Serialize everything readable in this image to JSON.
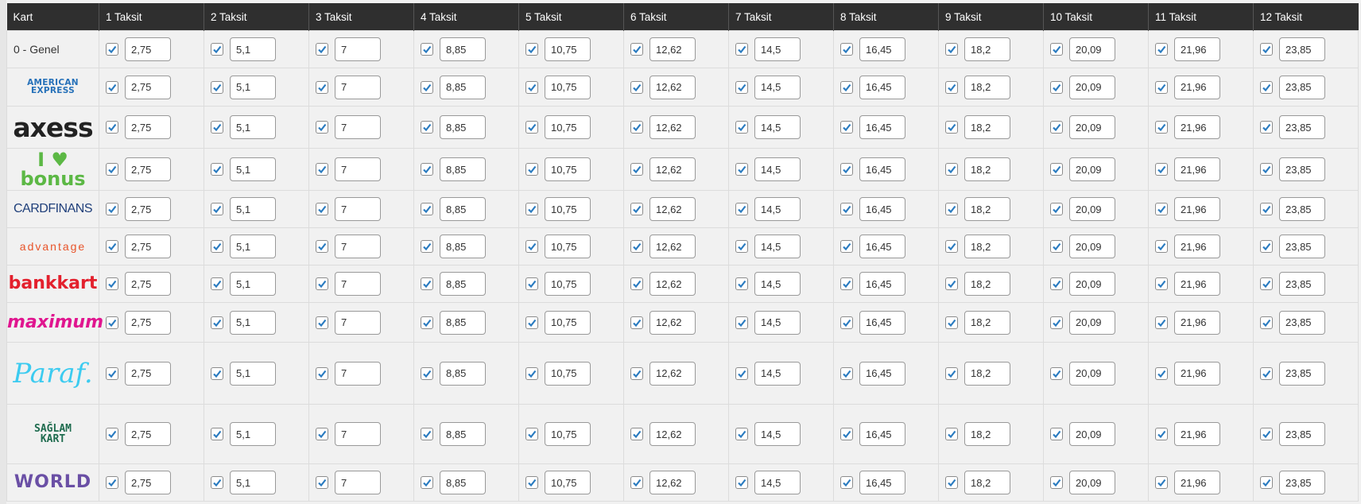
{
  "header": {
    "kart": "Kart",
    "columns": [
      "1 Taksit",
      "2 Taksit",
      "3 Taksit",
      "4 Taksit",
      "5 Taksit",
      "6 Taksit",
      "7 Taksit",
      "8 Taksit",
      "9 Taksit",
      "10 Taksit",
      "11 Taksit",
      "12 Taksit"
    ]
  },
  "values": [
    "2,75",
    "5,1",
    "7",
    "8,85",
    "10,75",
    "12,62",
    "14,5",
    "16,45",
    "18,2",
    "20,09",
    "21,96",
    "23,85"
  ],
  "rows": [
    {
      "kart": "0 - Genel",
      "type": "text",
      "checked": [
        true,
        true,
        true,
        true,
        true,
        true,
        true,
        true,
        true,
        true,
        true,
        true
      ]
    },
    {
      "kart": "AMERICAN EXPRESS",
      "type": "logo",
      "logo": "amex",
      "color": "#2671b9",
      "checked": [
        true,
        true,
        true,
        true,
        true,
        true,
        true,
        true,
        true,
        true,
        true,
        true
      ]
    },
    {
      "kart": "axess",
      "type": "logo",
      "logo": "axess",
      "color": "#222222",
      "checked": [
        true,
        true,
        true,
        true,
        true,
        true,
        true,
        true,
        true,
        true,
        true,
        true
      ]
    },
    {
      "kart": "I ♥ bonus",
      "type": "logo",
      "logo": "bonus",
      "color": "#5cb845",
      "checked": [
        true,
        true,
        true,
        true,
        true,
        true,
        true,
        true,
        true,
        true,
        true,
        true
      ]
    },
    {
      "kart": "CARDFINANS",
      "type": "logo",
      "logo": "cardfinans",
      "color": "#1f3f7a",
      "checked": [
        true,
        true,
        true,
        true,
        true,
        true,
        true,
        true,
        true,
        true,
        true,
        true
      ]
    },
    {
      "kart": "advantage",
      "type": "logo",
      "logo": "advantage",
      "color": "#e8542a",
      "checked": [
        true,
        true,
        true,
        true,
        true,
        true,
        true,
        true,
        true,
        true,
        true,
        true
      ]
    },
    {
      "kart": "bankkart",
      "type": "logo",
      "logo": "bankkart",
      "color": "#e3202d",
      "checked": [
        true,
        true,
        true,
        true,
        true,
        true,
        true,
        true,
        true,
        true,
        true,
        true
      ]
    },
    {
      "kart": "maximum",
      "type": "logo",
      "logo": "maximum",
      "color": "#e0158f",
      "checked": [
        true,
        true,
        true,
        true,
        true,
        true,
        true,
        true,
        true,
        true,
        true,
        true
      ]
    },
    {
      "kart": "Paraf.",
      "type": "logo",
      "logo": "paraf",
      "color": "#3ccbf0",
      "checked": [
        true,
        true,
        true,
        true,
        true,
        true,
        true,
        true,
        true,
        true,
        true,
        true
      ]
    },
    {
      "kart": "SAĞLAM KART",
      "type": "logo",
      "logo": "saglam",
      "color": "#1e6b4e",
      "checked": [
        true,
        true,
        true,
        true,
        true,
        true,
        true,
        true,
        true,
        true,
        true,
        true
      ]
    },
    {
      "kart": "WORLD",
      "type": "logo",
      "logo": "world",
      "color": "#6a4fa5",
      "checked": [
        true,
        true,
        true,
        true,
        true,
        true,
        true,
        true,
        true,
        true,
        true,
        true
      ]
    }
  ],
  "colors": {
    "header_bg": "#2f2f2f",
    "checkmark": "#2a7bc0"
  }
}
